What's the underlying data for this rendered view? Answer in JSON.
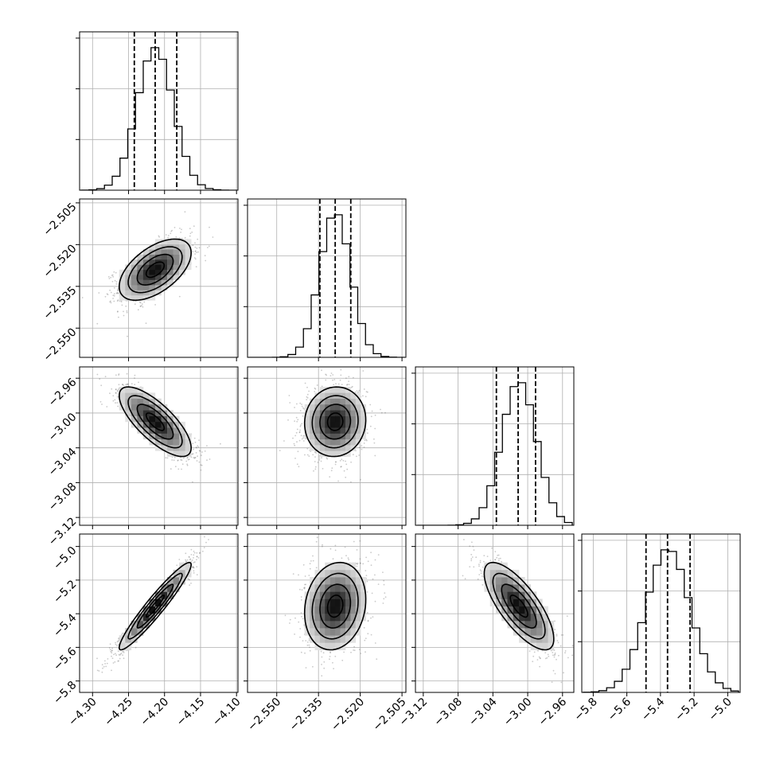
{
  "chart_data": {
    "type": "corner",
    "parameters": 4,
    "axes": [
      {
        "ticks": [
          -4.3,
          -4.25,
          -4.2,
          -4.15,
          -4.1
        ],
        "tick_labels": [
          "−4.30",
          "−4.25",
          "−4.20",
          "−4.15",
          "−4.10"
        ],
        "range": [
          -4.318,
          -4.098
        ],
        "center": -4.213,
        "sigma": 0.025,
        "quantiles": [
          -4.242,
          -4.213,
          -4.183
        ]
      },
      {
        "ticks": [
          -2.505,
          -2.52,
          -2.535,
          -2.55
        ],
        "tick_labels": [
          "−2.505",
          "−2.520",
          "−2.535",
          "−2.550"
        ],
        "range": [
          -2.5605,
          -2.5036
        ],
        "center": -2.529,
        "sigma": 0.0055,
        "quantiles": [
          -2.5345,
          -2.529,
          -2.5234
        ]
      },
      {
        "ticks": [
          -2.96,
          -3.0,
          -3.04,
          -3.08,
          -3.12
        ],
        "tick_labels": [
          "−2.96",
          "−3.00",
          "−3.04",
          "−3.08",
          "−3.12"
        ],
        "range": [
          -3.129,
          -2.947
        ],
        "center": -3.01,
        "sigma": 0.02,
        "quantiles": [
          -3.036,
          -3.011,
          -2.991
        ]
      },
      {
        "ticks": [
          -5.0,
          -5.2,
          -5.4,
          -5.6,
          -5.8
        ],
        "tick_labels": [
          "−5.0",
          "−5.2",
          "−5.4",
          "−5.6",
          "−5.8"
        ],
        "range": [
          -5.868,
          -4.926
        ],
        "center": -5.355,
        "sigma": 0.13,
        "quantiles": [
          -5.486,
          -5.358,
          -5.224
        ]
      }
    ],
    "correlations": [
      {
        "row": 1,
        "col": 0,
        "rho": 0.55
      },
      {
        "row": 2,
        "col": 0,
        "rho": -0.75
      },
      {
        "row": 2,
        "col": 1,
        "rho": 0.05
      },
      {
        "row": 3,
        "col": 0,
        "rho": 0.95
      },
      {
        "row": 3,
        "col": 1,
        "rho": 0.15
      },
      {
        "row": 3,
        "col": 2,
        "rho": -0.75
      }
    ],
    "contour_levels_sigma": [
      0.5,
      1.0,
      1.5,
      2.0
    ],
    "histogram": {
      "bins": 20,
      "style": "step"
    },
    "grid": true,
    "colors": {
      "line": "#000000",
      "grid": "#b0b0b0",
      "points": "#666666",
      "density_dark": "#000000",
      "density_light": "#ffffff"
    }
  }
}
